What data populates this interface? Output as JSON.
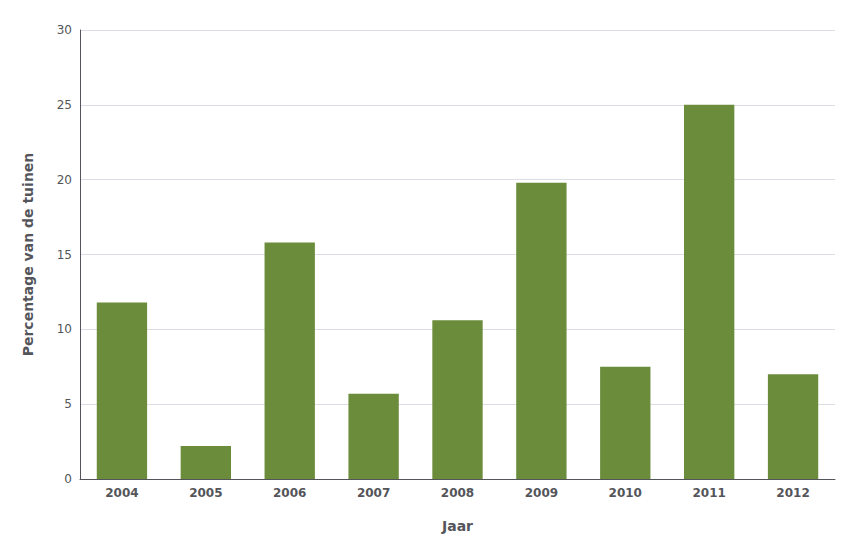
{
  "chart_data": {
    "type": "bar",
    "categories": [
      "2004",
      "2005",
      "2006",
      "2007",
      "2008",
      "2009",
      "2010",
      "2011",
      "2012"
    ],
    "values": [
      11.8,
      2.2,
      15.8,
      5.7,
      10.6,
      19.8,
      7.5,
      25.0,
      7.0
    ],
    "color": "#6b8c3a",
    "xlabel": "Jaar",
    "ylabel": "Percentage van de tuinen",
    "ylim": [
      0,
      30
    ],
    "yticks": [
      0,
      5,
      10,
      15,
      20,
      25,
      30
    ],
    "grid": true
  }
}
